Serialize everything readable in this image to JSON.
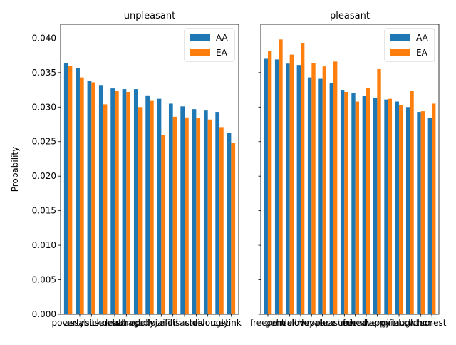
{
  "chart_data": [
    {
      "type": "bar",
      "title": "unpleasant",
      "ylabel": "Probability",
      "categories": [
        "poverty",
        "assault",
        "abuse",
        "sickness",
        "death",
        "hatred",
        "tragedy",
        "pollute",
        "jail",
        "filth",
        "disaster",
        "crash",
        "divorce",
        "ugly",
        "stink"
      ],
      "series": [
        {
          "name": "AA",
          "color": "#1f77b4",
          "values": [
            0.0364,
            0.0357,
            0.0338,
            0.0332,
            0.0327,
            0.0326,
            0.0326,
            0.0317,
            0.0312,
            0.0305,
            0.0301,
            0.0297,
            0.0295,
            0.0293,
            0.0263
          ]
        },
        {
          "name": "EA",
          "color": "#ff7f0e",
          "values": [
            0.036,
            0.0343,
            0.0336,
            0.0304,
            0.0323,
            0.0322,
            0.03,
            0.031,
            0.026,
            0.0286,
            0.0285,
            0.0284,
            0.0282,
            0.0271,
            0.0248
          ]
        }
      ],
      "ylim": [
        0,
        0.042
      ],
      "yticks": [
        {
          "value": 0,
          "label": "0.000"
        },
        {
          "value": 0.005,
          "label": "0.005"
        },
        {
          "value": 0.01,
          "label": "0.010"
        },
        {
          "value": 0.015,
          "label": "0.015"
        },
        {
          "value": 0.02,
          "label": "0.020"
        },
        {
          "value": 0.025,
          "label": "0.025"
        },
        {
          "value": 0.03,
          "label": "0.030"
        },
        {
          "value": 0.035,
          "label": "0.035"
        },
        {
          "value": 0.04,
          "label": "0.040"
        }
      ],
      "legend": "upper right"
    },
    {
      "type": "bar",
      "title": "pleasant",
      "categories": [
        "freedom",
        "gentle",
        "health",
        "love",
        "loyal",
        "peace",
        "pleasure",
        "cheer",
        "friend",
        "heaven",
        "happy",
        "gift",
        "rainbow",
        "laughter",
        "honor",
        "honest"
      ],
      "series": [
        {
          "name": "AA",
          "color": "#1f77b4",
          "values": [
            0.037,
            0.0369,
            0.0363,
            0.0361,
            0.0343,
            0.0341,
            0.0335,
            0.0325,
            0.032,
            0.0316,
            0.0313,
            0.0311,
            0.0308,
            0.03,
            0.0293,
            0.0284
          ]
        },
        {
          "name": "EA",
          "color": "#ff7f0e",
          "values": [
            0.0381,
            0.0398,
            0.0376,
            0.0393,
            0.0364,
            0.0359,
            0.0366,
            0.0322,
            0.0308,
            0.0328,
            0.0355,
            0.0312,
            0.0303,
            0.0323,
            0.0294,
            0.0305
          ]
        }
      ],
      "ylim": [
        0,
        0.042
      ],
      "yticks": [
        {
          "value": 0
        },
        {
          "value": 0.005
        },
        {
          "value": 0.01
        },
        {
          "value": 0.015
        },
        {
          "value": 0.02
        },
        {
          "value": 0.025
        },
        {
          "value": 0.03
        },
        {
          "value": 0.035
        },
        {
          "value": 0.04
        }
      ],
      "legend": "upper right"
    }
  ]
}
